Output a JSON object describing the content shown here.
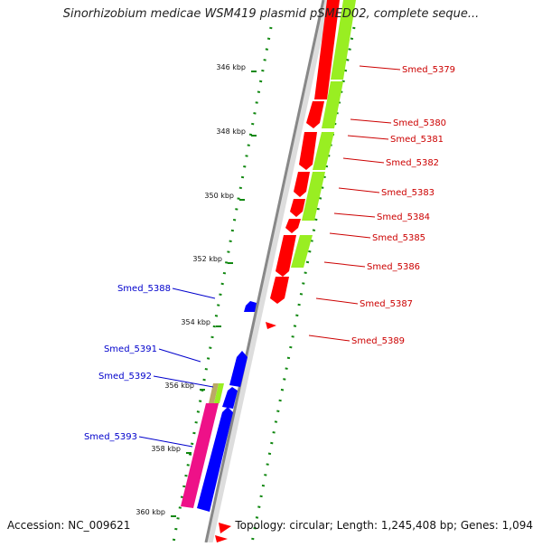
{
  "title": "Sinorhizobium medicae WSM419 plasmid pSMED02, complete seque...",
  "footer": {
    "accession": "Accession: NC_009621",
    "summary": "Topology: circular; Length: 1,245,408 bp; Genes: 1,094"
  },
  "scale_labels": [
    "346 kbp",
    "348 kbp",
    "350 kbp",
    "352 kbp",
    "354 kbp",
    "356 kbp",
    "358 kbp",
    "360 kbp"
  ],
  "genes_forward": [
    "Smed_5379",
    "Smed_5380",
    "Smed_5381",
    "Smed_5382",
    "Smed_5383",
    "Smed_5384",
    "Smed_5385",
    "Smed_5386",
    "Smed_5387",
    "Smed_5389"
  ],
  "genes_reverse": [
    "Smed_5388",
    "Smed_5391",
    "Smed_5392",
    "Smed_5393"
  ],
  "colors": {
    "forward_cds": "#ff0000",
    "forward_cog": "#99ee22",
    "reverse_cds": "#0000ff",
    "reverse_cog_green": "#99ee22",
    "reverse_cog_pink": "#ee1188",
    "reverse_cog_tan": "#bbaa66",
    "tick_green": "#118811",
    "backbone": "#888888",
    "label_forward": "#cc0000",
    "label_reverse": "#0000cc"
  }
}
